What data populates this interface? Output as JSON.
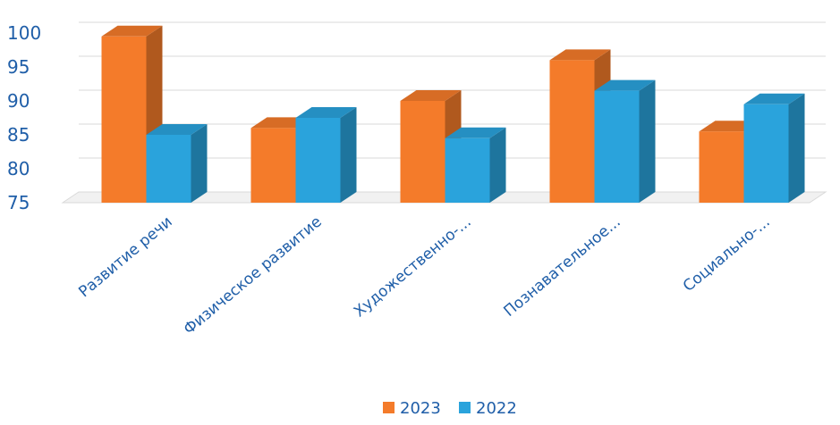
{
  "chart_data": {
    "type": "bar",
    "title": "",
    "xlabel": "",
    "ylabel": "",
    "categories": [
      "Развитие речи",
      "Физическое развитие",
      "Художественно-...",
      "Познавательное...",
      "Социально-..."
    ],
    "series": [
      {
        "name": "2023",
        "values": [
          99.5,
          86,
          90,
          96,
          85.5
        ]
      },
      {
        "name": "2022",
        "values": [
          85,
          87.5,
          84.5,
          91.5,
          89.5
        ]
      }
    ],
    "ylim": [
      75,
      100
    ],
    "yticks": [
      "75",
      "80",
      "85",
      "90",
      "95",
      "100"
    ],
    "legend": {
      "position": "bottom"
    },
    "grid": true,
    "three_d": true,
    "colors": {
      "2023": "#f47b2a",
      "2022": "#2aa3dc",
      "axis_text": "#1f5ea8",
      "grid": "#dadada"
    }
  }
}
